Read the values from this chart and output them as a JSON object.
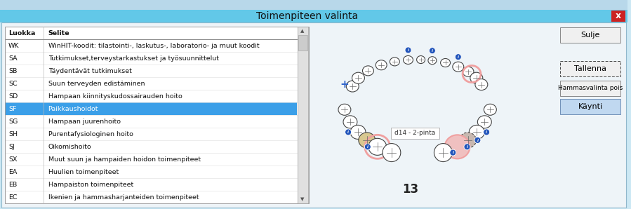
{
  "title": "Toimenpiteen valinta",
  "bg_color": "#cce8f4",
  "dialog_bg": "#eef4f8",
  "title_bg": "#62c8e8",
  "title_color": "#111111",
  "close_btn_color": "#cc2222",
  "table_rows": [
    [
      "Luokka",
      "Selite"
    ],
    [
      "WK",
      "WinHIT-koodit: tilastointi-, laskutus-, laboratorio- ja muut koodit"
    ],
    [
      "SA",
      "Tutkimukset,terveystarkastukset ja työsuunnittelut"
    ],
    [
      "SB",
      "Täydentävät tutkimukset"
    ],
    [
      "SC",
      "Suun terveyden edistäminen"
    ],
    [
      "SD",
      "Hampaan kiinnityskudossairauden hoito"
    ],
    [
      "SF",
      "Paikkaushoidot"
    ],
    [
      "SG",
      "Hampaan juurenhoito"
    ],
    [
      "SH",
      "Purentafysiologinen hoito"
    ],
    [
      "SJ",
      "Oikomishoito"
    ],
    [
      "SX",
      "Muut suun ja hampaiden hoidon toimenpiteet"
    ],
    [
      "EA",
      "Huulien toimenpiteet"
    ],
    [
      "EB",
      "Hampaiston toimenpiteet"
    ],
    [
      "EC",
      "Ikenien ja hammasharjanteiden toimenpiteet"
    ]
  ],
  "selected_row": 6,
  "selected_bg": "#3b9fe8",
  "selected_fg": "#ffffff",
  "row_color": "#111111",
  "tooth_label": "d14 - 2-pinta",
  "number_label": "13",
  "btn_sulje": "Sulje",
  "btn_tallenna": "Tallenna",
  "btn_hammasvalinta": "Hammasvalinta pois",
  "btn_kaynti": "Käynti",
  "btn_kaynti_bg": "#c0d8f0",
  "pink_outline": "#f0a0a0",
  "pink_fill": "#f0c0c0",
  "beige_fill": "#d8c890",
  "gray_fill": "#c8b8b0",
  "info_blue": "#2255bb",
  "cross_blue": "#3366cc",
  "tooth_edge": "#444444",
  "inner_line": "#666666"
}
